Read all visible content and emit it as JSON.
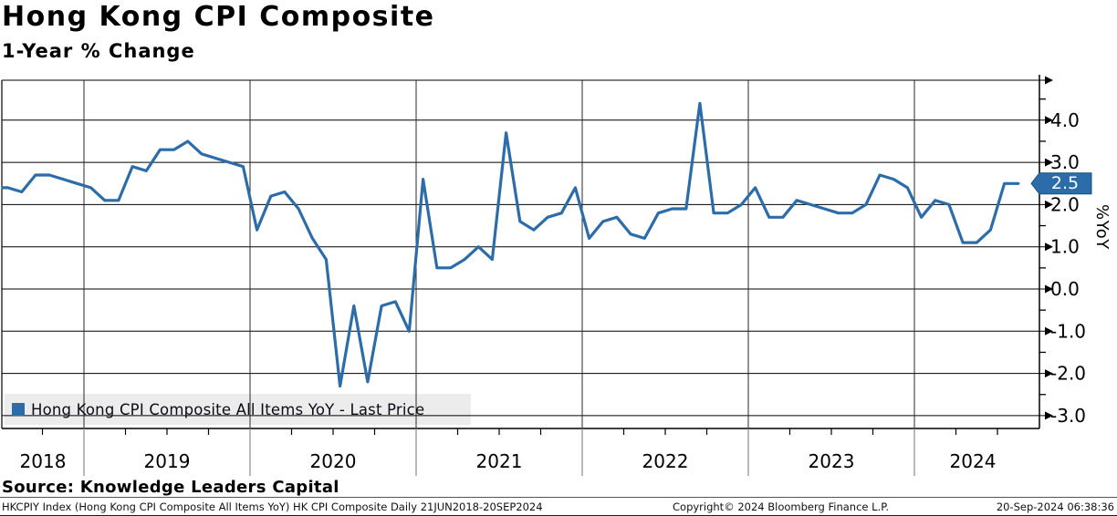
{
  "header": {
    "title": "Hong Kong CPI Composite",
    "subtitle": "1-Year % Change"
  },
  "legend": {
    "label": "Hong Kong CPI Composite All Items YoY - Last Price",
    "marker_color": "#2b6ca9"
  },
  "last_price": {
    "value": "2.5",
    "bg_color": "#2b6ca9",
    "text_color": "#ffffff"
  },
  "y_axis": {
    "label": "%YoY",
    "ticks": [
      "4.0",
      "3.0",
      "2.0",
      "1.0",
      "0.0",
      "-1.0",
      "-2.0",
      "-3.0"
    ]
  },
  "x_axis": {
    "years": [
      "2018",
      "2019",
      "2020",
      "2021",
      "2022",
      "2023",
      "2024"
    ]
  },
  "source_line": "Source: Knowledge Leaders Capital",
  "footer": {
    "left": "HKCPIY Index (Hong Kong CPI Composite All Items YoY) HK CPI Composite  Daily 21JUN2018-20SEP2024",
    "center": "Copyright© 2024 Bloomberg Finance L.P.",
    "right": "20-Sep-2024 06:38:36"
  },
  "chart_data": {
    "type": "line",
    "title": "Hong Kong CPI Composite",
    "subtitle": "1-Year % Change",
    "ylabel": "%YoY",
    "series_name": "Hong Kong CPI Composite All Items YoY - Last Price",
    "line_color": "#2b6ca9",
    "period": "Daily 21JUN2018-20SEP2024",
    "last_value": 2.5,
    "ylim": [
      -3.3,
      4.95
    ],
    "yticks": [
      4.0,
      3.0,
      2.0,
      1.0,
      0.0,
      -1.0,
      -2.0,
      -3.0
    ],
    "x_years": [
      2018,
      2019,
      2020,
      2021,
      2022,
      2023,
      2024
    ],
    "legend_position": "bottom-left",
    "grid": true,
    "points": [
      [
        "2018-06",
        2.4
      ],
      [
        "2018-07",
        2.4
      ],
      [
        "2018-08",
        2.3
      ],
      [
        "2018-09",
        2.7
      ],
      [
        "2018-10",
        2.7
      ],
      [
        "2018-11",
        2.6
      ],
      [
        "2018-12",
        2.5
      ],
      [
        "2019-01",
        2.4
      ],
      [
        "2019-02",
        2.1
      ],
      [
        "2019-03",
        2.1
      ],
      [
        "2019-04",
        2.9
      ],
      [
        "2019-05",
        2.8
      ],
      [
        "2019-06",
        3.3
      ],
      [
        "2019-07",
        3.3
      ],
      [
        "2019-08",
        3.5
      ],
      [
        "2019-09",
        3.2
      ],
      [
        "2019-10",
        3.1
      ],
      [
        "2019-11",
        3.0
      ],
      [
        "2019-12",
        2.9
      ],
      [
        "2020-01",
        1.4
      ],
      [
        "2020-02",
        2.2
      ],
      [
        "2020-03",
        2.3
      ],
      [
        "2020-04",
        1.9
      ],
      [
        "2020-05",
        1.2
      ],
      [
        "2020-06",
        0.7
      ],
      [
        "2020-07",
        -2.3
      ],
      [
        "2020-08",
        -0.4
      ],
      [
        "2020-09",
        -2.2
      ],
      [
        "2020-10",
        -0.4
      ],
      [
        "2020-11",
        -0.3
      ],
      [
        "2020-12",
        -1.0
      ],
      [
        "2021-01",
        2.6
      ],
      [
        "2021-02",
        0.5
      ],
      [
        "2021-03",
        0.5
      ],
      [
        "2021-04",
        0.7
      ],
      [
        "2021-05",
        1.0
      ],
      [
        "2021-06",
        0.7
      ],
      [
        "2021-07",
        3.7
      ],
      [
        "2021-08",
        1.6
      ],
      [
        "2021-09",
        1.4
      ],
      [
        "2021-10",
        1.7
      ],
      [
        "2021-11",
        1.8
      ],
      [
        "2021-12",
        2.4
      ],
      [
        "2022-01",
        1.2
      ],
      [
        "2022-02",
        1.6
      ],
      [
        "2022-03",
        1.7
      ],
      [
        "2022-04",
        1.3
      ],
      [
        "2022-05",
        1.2
      ],
      [
        "2022-06",
        1.8
      ],
      [
        "2022-07",
        1.9
      ],
      [
        "2022-08",
        1.9
      ],
      [
        "2022-09",
        4.4
      ],
      [
        "2022-10",
        1.8
      ],
      [
        "2022-11",
        1.8
      ],
      [
        "2022-12",
        2.0
      ],
      [
        "2023-01",
        2.4
      ],
      [
        "2023-02",
        1.7
      ],
      [
        "2023-03",
        1.7
      ],
      [
        "2023-04",
        2.1
      ],
      [
        "2023-05",
        2.0
      ],
      [
        "2023-06",
        1.9
      ],
      [
        "2023-07",
        1.8
      ],
      [
        "2023-08",
        1.8
      ],
      [
        "2023-09",
        2.0
      ],
      [
        "2023-10",
        2.7
      ],
      [
        "2023-11",
        2.6
      ],
      [
        "2023-12",
        2.4
      ],
      [
        "2024-01",
        1.7
      ],
      [
        "2024-02",
        2.1
      ],
      [
        "2024-03",
        2.0
      ],
      [
        "2024-04",
        1.1
      ],
      [
        "2024-05",
        1.1
      ],
      [
        "2024-06",
        1.4
      ],
      [
        "2024-07",
        2.5
      ],
      [
        "2024-08",
        2.5
      ]
    ]
  }
}
